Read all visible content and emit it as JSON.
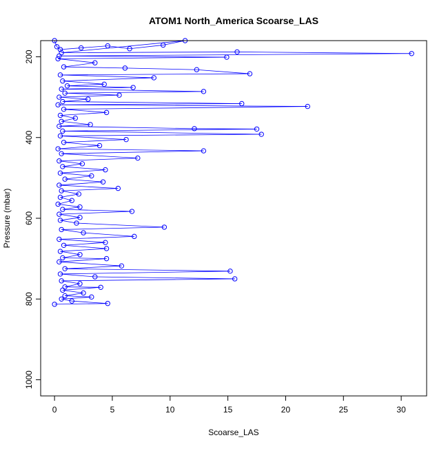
{
  "chart_data": {
    "type": "line",
    "title": "ATOM1 North_America Scoarse_LAS",
    "xlabel": "Scoarse_LAS",
    "ylabel": "Pressure (mbar)",
    "xlim": [
      -1.2,
      32.2
    ],
    "ylim": [
      1040,
      160
    ],
    "y_reversed": true,
    "grid": false,
    "legend": "none",
    "x_ticks": [
      "0",
      "5",
      "10",
      "15",
      "20",
      "25",
      "30"
    ],
    "y_ticks": [
      "200",
      "400",
      "600",
      "800",
      "1000"
    ],
    "colors": {
      "series": "#0000ff",
      "axis": "#000000"
    },
    "marker": "open-circle",
    "series": [
      {
        "points": [
          {
            "x": 0.0,
            "y": 160
          },
          {
            "x": 0.2,
            "y": 175
          },
          {
            "x": 0.5,
            "y": 182
          },
          {
            "x": 2.3,
            "y": 178
          },
          {
            "x": 4.6,
            "y": 173
          },
          {
            "x": 6.5,
            "y": 180
          },
          {
            "x": 9.4,
            "y": 171
          },
          {
            "x": 11.3,
            "y": 160
          },
          {
            "x": 0.6,
            "y": 190
          },
          {
            "x": 15.8,
            "y": 188
          },
          {
            "x": 30.9,
            "y": 192
          },
          {
            "x": 0.4,
            "y": 198
          },
          {
            "x": 14.9,
            "y": 201
          },
          {
            "x": 0.3,
            "y": 205
          },
          {
            "x": 3.5,
            "y": 215
          },
          {
            "x": 0.8,
            "y": 225
          },
          {
            "x": 6.1,
            "y": 228
          },
          {
            "x": 12.3,
            "y": 232
          },
          {
            "x": 16.9,
            "y": 242
          },
          {
            "x": 0.5,
            "y": 245
          },
          {
            "x": 8.6,
            "y": 252
          },
          {
            "x": 0.7,
            "y": 260
          },
          {
            "x": 4.3,
            "y": 268
          },
          {
            "x": 1.1,
            "y": 272
          },
          {
            "x": 6.8,
            "y": 276
          },
          {
            "x": 0.6,
            "y": 280
          },
          {
            "x": 12.9,
            "y": 286
          },
          {
            "x": 0.9,
            "y": 290
          },
          {
            "x": 5.6,
            "y": 295
          },
          {
            "x": 0.4,
            "y": 300
          },
          {
            "x": 2.9,
            "y": 305
          },
          {
            "x": 0.7,
            "y": 311
          },
          {
            "x": 16.2,
            "y": 316
          },
          {
            "x": 0.3,
            "y": 319
          },
          {
            "x": 21.9,
            "y": 323
          },
          {
            "x": 0.8,
            "y": 330
          },
          {
            "x": 4.5,
            "y": 338
          },
          {
            "x": 0.5,
            "y": 345
          },
          {
            "x": 1.8,
            "y": 352
          },
          {
            "x": 0.6,
            "y": 360
          },
          {
            "x": 3.1,
            "y": 368
          },
          {
            "x": 0.4,
            "y": 372
          },
          {
            "x": 12.1,
            "y": 378
          },
          {
            "x": 17.5,
            "y": 379
          },
          {
            "x": 0.7,
            "y": 384
          },
          {
            "x": 17.9,
            "y": 392
          },
          {
            "x": 0.5,
            "y": 396
          },
          {
            "x": 6.2,
            "y": 405
          },
          {
            "x": 0.8,
            "y": 412
          },
          {
            "x": 3.9,
            "y": 420
          },
          {
            "x": 0.3,
            "y": 428
          },
          {
            "x": 12.9,
            "y": 433
          },
          {
            "x": 0.6,
            "y": 440
          },
          {
            "x": 7.2,
            "y": 451
          },
          {
            "x": 0.4,
            "y": 458
          },
          {
            "x": 2.4,
            "y": 465
          },
          {
            "x": 0.7,
            "y": 472
          },
          {
            "x": 4.4,
            "y": 480
          },
          {
            "x": 0.5,
            "y": 488
          },
          {
            "x": 3.2,
            "y": 495
          },
          {
            "x": 0.9,
            "y": 503
          },
          {
            "x": 4.2,
            "y": 510
          },
          {
            "x": 0.4,
            "y": 518
          },
          {
            "x": 5.5,
            "y": 526
          },
          {
            "x": 0.6,
            "y": 532
          },
          {
            "x": 2.1,
            "y": 540
          },
          {
            "x": 0.5,
            "y": 548
          },
          {
            "x": 1.5,
            "y": 556
          },
          {
            "x": 0.3,
            "y": 565
          },
          {
            "x": 2.2,
            "y": 572
          },
          {
            "x": 0.7,
            "y": 578
          },
          {
            "x": 6.7,
            "y": 583
          },
          {
            "x": 0.4,
            "y": 590
          },
          {
            "x": 2.2,
            "y": 598
          },
          {
            "x": 0.5,
            "y": 605
          },
          {
            "x": 1.9,
            "y": 612
          },
          {
            "x": 9.5,
            "y": 622
          },
          {
            "x": 0.6,
            "y": 628
          },
          {
            "x": 2.5,
            "y": 636
          },
          {
            "x": 6.9,
            "y": 645
          },
          {
            "x": 0.4,
            "y": 652
          },
          {
            "x": 4.4,
            "y": 660
          },
          {
            "x": 0.8,
            "y": 667
          },
          {
            "x": 4.5,
            "y": 675
          },
          {
            "x": 0.5,
            "y": 682
          },
          {
            "x": 2.2,
            "y": 690
          },
          {
            "x": 0.7,
            "y": 698
          },
          {
            "x": 4.5,
            "y": 700
          },
          {
            "x": 0.4,
            "y": 708
          },
          {
            "x": 5.8,
            "y": 718
          },
          {
            "x": 0.9,
            "y": 725
          },
          {
            "x": 15.2,
            "y": 731
          },
          {
            "x": 0.5,
            "y": 738
          },
          {
            "x": 3.5,
            "y": 745
          },
          {
            "x": 15.6,
            "y": 750
          },
          {
            "x": 0.6,
            "y": 755
          },
          {
            "x": 2.2,
            "y": 762
          },
          {
            "x": 0.9,
            "y": 770
          },
          {
            "x": 4.0,
            "y": 771
          },
          {
            "x": 0.7,
            "y": 778
          },
          {
            "x": 2.5,
            "y": 785
          },
          {
            "x": 0.9,
            "y": 792
          },
          {
            "x": 3.2,
            "y": 795
          },
          {
            "x": 0.6,
            "y": 800
          },
          {
            "x": 1.5,
            "y": 805
          },
          {
            "x": 4.6,
            "y": 811
          },
          {
            "x": 0.0,
            "y": 813
          }
        ]
      }
    ]
  }
}
